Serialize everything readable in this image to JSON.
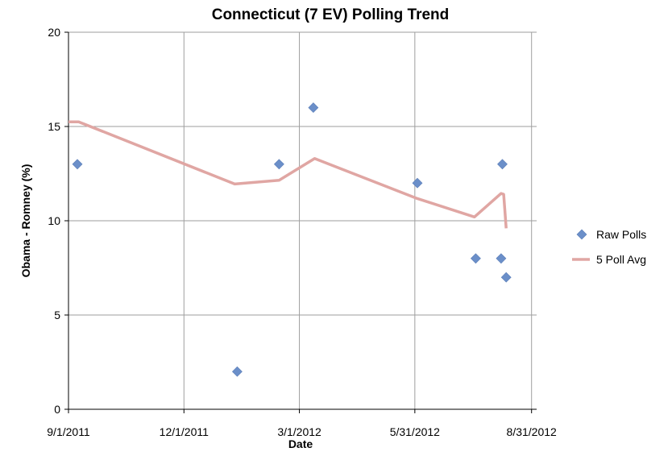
{
  "chart_data": {
    "type": "line",
    "title": "Connecticut (7 EV) Polling Trend",
    "xlabel": "Date",
    "ylabel": "Obama - Romney (%)",
    "ylim": [
      0,
      20
    ],
    "xlim": [
      "2011-09-01",
      "2012-09-04"
    ],
    "x_ticks": [
      {
        "date": "2011-09-01",
        "label": "9/1/2011"
      },
      {
        "date": "2011-12-01",
        "label": "12/1/2011"
      },
      {
        "date": "2012-03-01",
        "label": "3/1/2012"
      },
      {
        "date": "2012-05-31",
        "label": "5/31/2012"
      },
      {
        "date": "2012-08-31",
        "label": "8/31/2012"
      }
    ],
    "y_ticks": [
      0,
      5,
      10,
      15,
      20
    ],
    "grid": true,
    "legend_position": "right",
    "series": [
      {
        "name": "Raw Polls",
        "kind": "scatter",
        "color": "#6b8fc9",
        "marker": "diamond",
        "points": [
          {
            "x": "2011-09-08",
            "y": 13
          },
          {
            "x": "2012-01-12",
            "y": 2
          },
          {
            "x": "2012-02-14",
            "y": 13
          },
          {
            "x": "2012-03-12",
            "y": 16
          },
          {
            "x": "2012-06-02",
            "y": 12
          },
          {
            "x": "2012-07-18",
            "y": 8
          },
          {
            "x": "2012-08-07",
            "y": 8
          },
          {
            "x": "2012-08-08",
            "y": 13
          },
          {
            "x": "2012-08-11",
            "y": 7
          }
        ]
      },
      {
        "name": "5 Poll Avg",
        "kind": "line",
        "color": "#e0a6a3",
        "points": [
          {
            "x": "2011-09-01",
            "y": 15.25
          },
          {
            "x": "2011-09-09",
            "y": 15.25
          },
          {
            "x": "2012-01-10",
            "y": 11.95
          },
          {
            "x": "2012-02-14",
            "y": 12.15
          },
          {
            "x": "2012-03-13",
            "y": 13.3
          },
          {
            "x": "2012-06-01",
            "y": 11.2
          },
          {
            "x": "2012-07-17",
            "y": 10.2
          },
          {
            "x": "2012-08-07",
            "y": 11.45
          },
          {
            "x": "2012-08-09",
            "y": 11.4
          },
          {
            "x": "2012-08-11",
            "y": 9.6
          }
        ]
      }
    ]
  }
}
